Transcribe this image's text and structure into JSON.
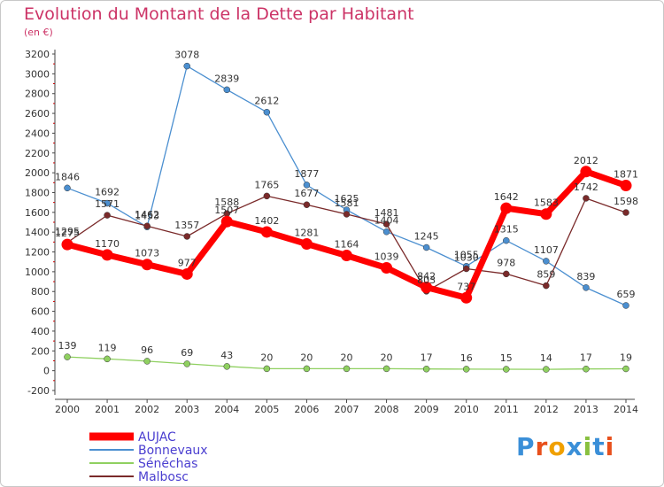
{
  "title": "Evolution du Montant de la Dette par Habitant",
  "subtitle": "(en €)",
  "logo": {
    "text": "Proxiti",
    "colors": [
      "#3a8fd8",
      "#e8501c",
      "#f0a000",
      "#3a8fd8",
      "#88c040",
      "#3a8fd8",
      "#e8501c"
    ]
  },
  "chart_data": {
    "type": "line",
    "categories": [
      "2000",
      "2001",
      "2002",
      "2003",
      "2004",
      "2005",
      "2006",
      "2007",
      "2008",
      "2009",
      "2010",
      "2011",
      "2012",
      "2013",
      "2014"
    ],
    "ylim": [
      -200,
      3200
    ],
    "yticks": [
      -200,
      0,
      200,
      400,
      600,
      800,
      1000,
      1200,
      1400,
      1600,
      1800,
      2000,
      2200,
      2400,
      2600,
      2800,
      3000,
      3200
    ],
    "grid": false,
    "legend_placement": "bottom-left",
    "series": [
      {
        "name": "AUJAC",
        "color": "#ff0000",
        "values": [
          1275,
          1170,
          1073,
          977,
          1507,
          1402,
          1281,
          1164,
          1039,
          842,
          737,
          1642,
          1583,
          2012,
          1871
        ]
      },
      {
        "name": "Bonnevaux",
        "color": "#4b8fd0",
        "values": [
          1846,
          1692,
          1453,
          3078,
          2839,
          2612,
          1877,
          1625,
          1404,
          1245,
          1055,
          1315,
          1107,
          839,
          659
        ]
      },
      {
        "name": "Sénéchas",
        "color": "#8fd060",
        "values": [
          139,
          119,
          96,
          69,
          43,
          20,
          20,
          20,
          20,
          17,
          16,
          15,
          14,
          17,
          19
        ]
      },
      {
        "name": "Malbosc",
        "color": "#7a2a2a",
        "values": [
          1295,
          1571,
          1462,
          1357,
          1588,
          1765,
          1677,
          1581,
          1481,
          803,
          1030,
          978,
          859,
          1742,
          1598
        ]
      }
    ]
  }
}
